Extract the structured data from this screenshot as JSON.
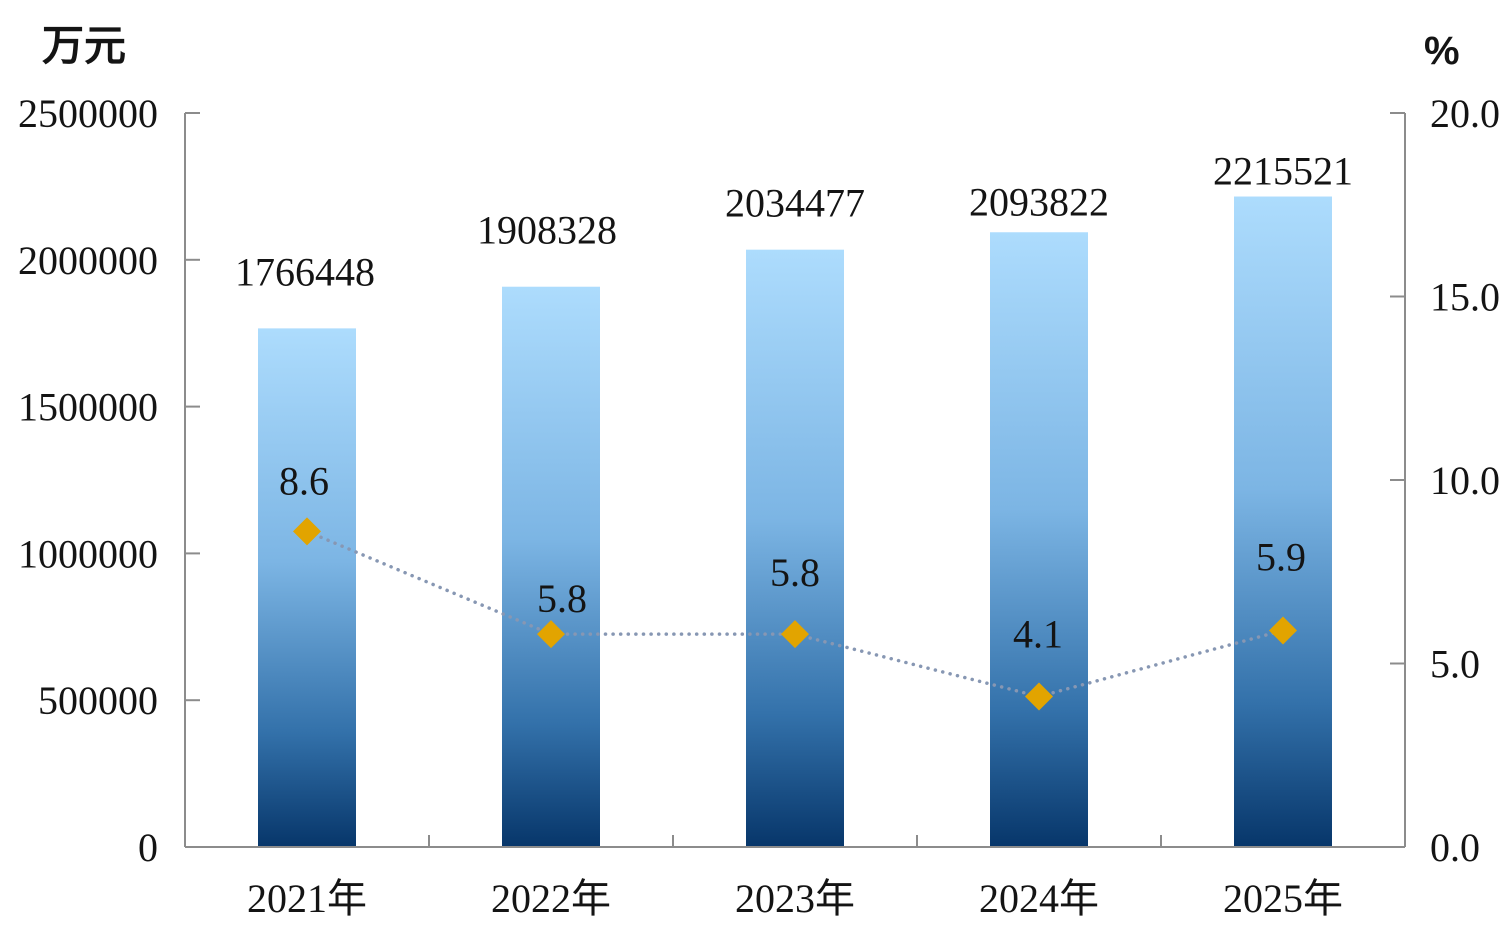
{
  "chart_data": {
    "type": "bar",
    "categories": [
      "2021年",
      "2022年",
      "2023年",
      "2024年",
      "2025年"
    ],
    "series": [
      {
        "type": "bar",
        "y_axis": "left",
        "values": [
          1766448,
          1908328,
          2034477,
          2093822,
          2215521
        ]
      },
      {
        "type": "line",
        "y_axis": "right",
        "values": [
          8.6,
          5.8,
          5.8,
          4.1,
          5.9
        ]
      }
    ],
    "y_left": {
      "unit": "万元",
      "range": [
        0,
        2500000
      ],
      "ticks": [
        "0",
        "500000",
        "1000000",
        "1500000",
        "2000000",
        "2500000"
      ]
    },
    "y_right": {
      "unit": "%",
      "range": [
        0,
        20
      ],
      "ticks": [
        "0.0",
        "5.0",
        "10.0",
        "15.0",
        "20.0"
      ]
    },
    "data_labels": true,
    "grid": false,
    "legend": "none",
    "colors": {
      "bar_gradient": [
        "#addcfd",
        "#7cb5e4",
        "#3371aa",
        "#07366a"
      ],
      "line": "#8797b3",
      "marker": "#e2a400",
      "axis": "#8c8c8c",
      "text": "#141414"
    }
  }
}
